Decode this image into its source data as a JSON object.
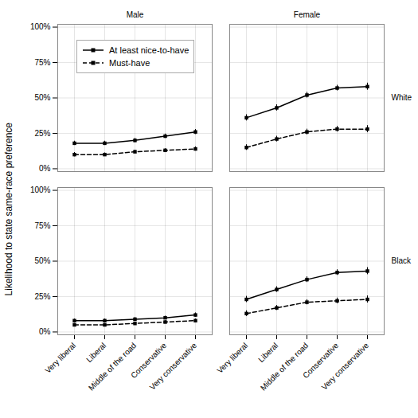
{
  "chart_data": {
    "type": "line",
    "ylabel": "Likelihood to state same-race preference",
    "categories": [
      "Very liberal",
      "Liberal",
      "Middle of the road",
      "Conservative",
      "Very conservative"
    ],
    "ylim": [
      -0.02,
      1.02
    ],
    "yticks": [
      {
        "value": 0.0,
        "label": "0%"
      },
      {
        "value": 0.25,
        "label": "25%"
      },
      {
        "value": 0.5,
        "label": "50%"
      },
      {
        "value": 0.75,
        "label": "75%"
      },
      {
        "value": 1.0,
        "label": "100%"
      }
    ],
    "grid": true,
    "legend": "upper left",
    "col_labels": [
      "Male",
      "Female"
    ],
    "row_labels": [
      "White",
      "Black"
    ],
    "panels": [
      {
        "row": "White",
        "col": "Male",
        "series": [
          {
            "name": "At least nice-to-have",
            "color": "#000000",
            "line_style": "solid",
            "marker": "square",
            "values": [
              0.18,
              0.18,
              0.2,
              0.23,
              0.26
            ],
            "errors": [
              0.015,
              0.015,
              0.015,
              0.015,
              0.018
            ]
          },
          {
            "name": "Must-have",
            "color": "#000000",
            "line_style": "dashed",
            "marker": "square",
            "values": [
              0.1,
              0.1,
              0.12,
              0.13,
              0.14
            ],
            "errors": [
              0.015,
              0.012,
              0.012,
              0.012,
              0.015
            ]
          }
        ]
      },
      {
        "row": "White",
        "col": "Female",
        "series": [
          {
            "name": "At least nice-to-have",
            "color": "#000000",
            "line_style": "solid",
            "marker": "square",
            "values": [
              0.36,
              0.43,
              0.52,
              0.57,
              0.58
            ],
            "errors": [
              0.022,
              0.022,
              0.02,
              0.02,
              0.025
            ]
          },
          {
            "name": "Must-have",
            "color": "#000000",
            "line_style": "dashed",
            "marker": "square",
            "values": [
              0.15,
              0.21,
              0.26,
              0.28,
              0.28
            ],
            "errors": [
              0.02,
              0.02,
              0.02,
              0.02,
              0.025
            ]
          }
        ]
      },
      {
        "row": "Black",
        "col": "Male",
        "series": [
          {
            "name": "At least nice-to-have",
            "color": "#000000",
            "line_style": "solid",
            "marker": "square",
            "values": [
              0.08,
              0.08,
              0.09,
              0.1,
              0.12
            ],
            "errors": [
              0.012,
              0.012,
              0.012,
              0.012,
              0.015
            ]
          },
          {
            "name": "Must-have",
            "color": "#000000",
            "line_style": "dashed",
            "marker": "square",
            "values": [
              0.05,
              0.05,
              0.06,
              0.07,
              0.08
            ],
            "errors": [
              0.01,
              0.01,
              0.01,
              0.01,
              0.012
            ]
          }
        ]
      },
      {
        "row": "Black",
        "col": "Female",
        "series": [
          {
            "name": "At least nice-to-have",
            "color": "#000000",
            "line_style": "solid",
            "marker": "square",
            "values": [
              0.23,
              0.3,
              0.37,
              0.42,
              0.43
            ],
            "errors": [
              0.022,
              0.02,
              0.02,
              0.02,
              0.025
            ]
          },
          {
            "name": "Must-have",
            "color": "#000000",
            "line_style": "dashed",
            "marker": "square",
            "values": [
              0.13,
              0.17,
              0.21,
              0.22,
              0.23
            ],
            "errors": [
              0.02,
              0.018,
              0.018,
              0.02,
              0.025
            ]
          }
        ]
      }
    ]
  }
}
